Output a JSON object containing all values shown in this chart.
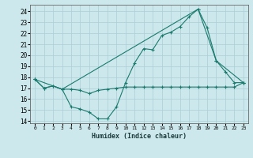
{
  "title": "",
  "xlabel": "Humidex (Indice chaleur)",
  "ylabel": "",
  "bg_color": "#cce8ec",
  "grid_color": "#aacdd4",
  "line_color": "#1a7a6e",
  "xlim": [
    -0.5,
    23.5
  ],
  "ylim": [
    13.8,
    24.6
  ],
  "yticks": [
    14,
    15,
    16,
    17,
    18,
    19,
    20,
    21,
    22,
    23,
    24
  ],
  "xticks": [
    0,
    1,
    2,
    3,
    4,
    5,
    6,
    7,
    8,
    9,
    10,
    11,
    12,
    13,
    14,
    15,
    16,
    17,
    18,
    19,
    20,
    21,
    22,
    23
  ],
  "series1_x": [
    0,
    1,
    2,
    3,
    4,
    5,
    6,
    7,
    8,
    9,
    10,
    11,
    12,
    13,
    14,
    15,
    16,
    17,
    18,
    19,
    20,
    21,
    22,
    23
  ],
  "series1_y": [
    17.8,
    17.0,
    17.2,
    16.9,
    15.3,
    15.1,
    14.8,
    14.2,
    14.2,
    15.3,
    17.5,
    19.3,
    20.6,
    20.5,
    21.8,
    22.1,
    22.6,
    23.5,
    24.2,
    22.5,
    19.5,
    18.5,
    17.5,
    17.5
  ],
  "series2_x": [
    0,
    1,
    2,
    3,
    4,
    5,
    6,
    7,
    8,
    9,
    10,
    11,
    12,
    13,
    14,
    15,
    16,
    17,
    18,
    19,
    20,
    21,
    22,
    23
  ],
  "series2_y": [
    17.8,
    17.0,
    17.2,
    16.9,
    16.9,
    16.8,
    16.5,
    16.8,
    16.9,
    17.0,
    17.1,
    17.1,
    17.1,
    17.1,
    17.1,
    17.1,
    17.1,
    17.1,
    17.1,
    17.1,
    17.1,
    17.1,
    17.1,
    17.5
  ],
  "series3_x": [
    0,
    3,
    18,
    20,
    23
  ],
  "series3_y": [
    17.8,
    16.9,
    24.2,
    19.5,
    17.5
  ]
}
